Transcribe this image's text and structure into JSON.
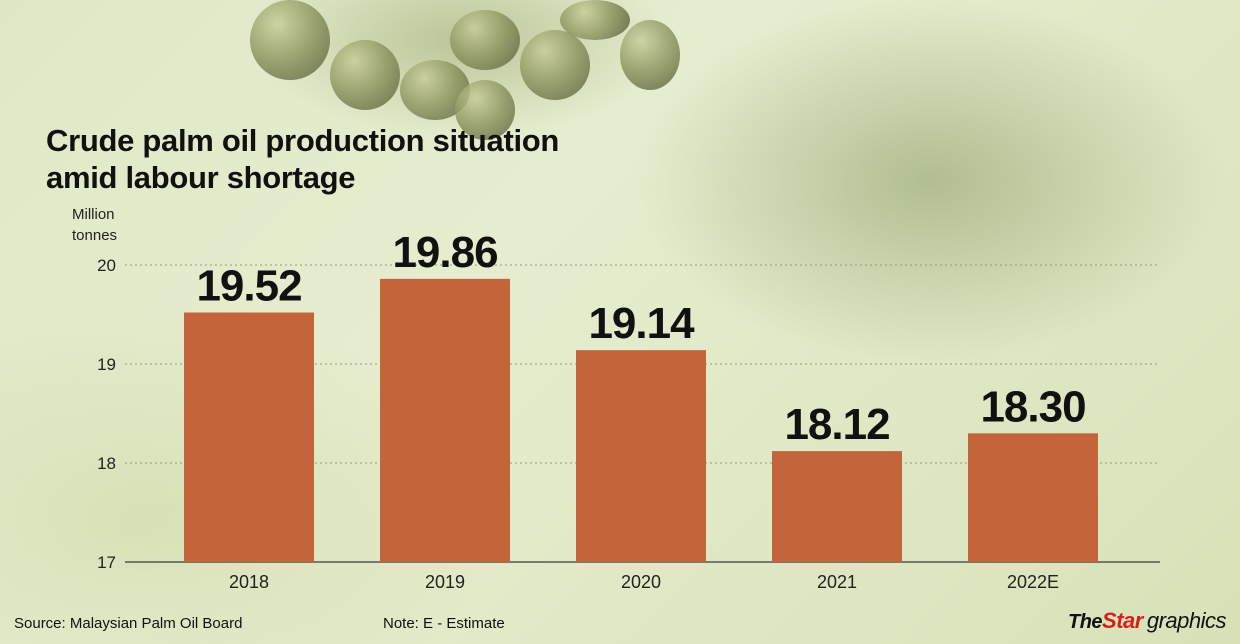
{
  "title": "Crude palm oil production situation amid labour shortage",
  "unit_label": "Million tonnes",
  "source": "Source: Malaysian Palm Oil Board",
  "note": "Note: E - Estimate",
  "logo": {
    "the": "The",
    "star": "Star",
    "graphics": "graphics"
  },
  "colors": {
    "bar": "#c4643b",
    "grid": "#8f9a78",
    "label": "#111111",
    "logo_accent": "#d4201f"
  },
  "chart_data": {
    "type": "bar",
    "title": "Crude palm oil production situation amid labour shortage",
    "ylabel": "Million tonnes",
    "categories": [
      "2018",
      "2019",
      "2020",
      "2021",
      "2022E"
    ],
    "values": [
      19.52,
      19.86,
      19.14,
      18.12,
      18.3
    ],
    "value_labels": [
      "19.52",
      "19.86",
      "19.14",
      "18.12",
      "18.30"
    ],
    "ylim": [
      17,
      20
    ],
    "yticks": [
      "17",
      "18",
      "19",
      "20"
    ],
    "grid": true,
    "legend": false
  }
}
